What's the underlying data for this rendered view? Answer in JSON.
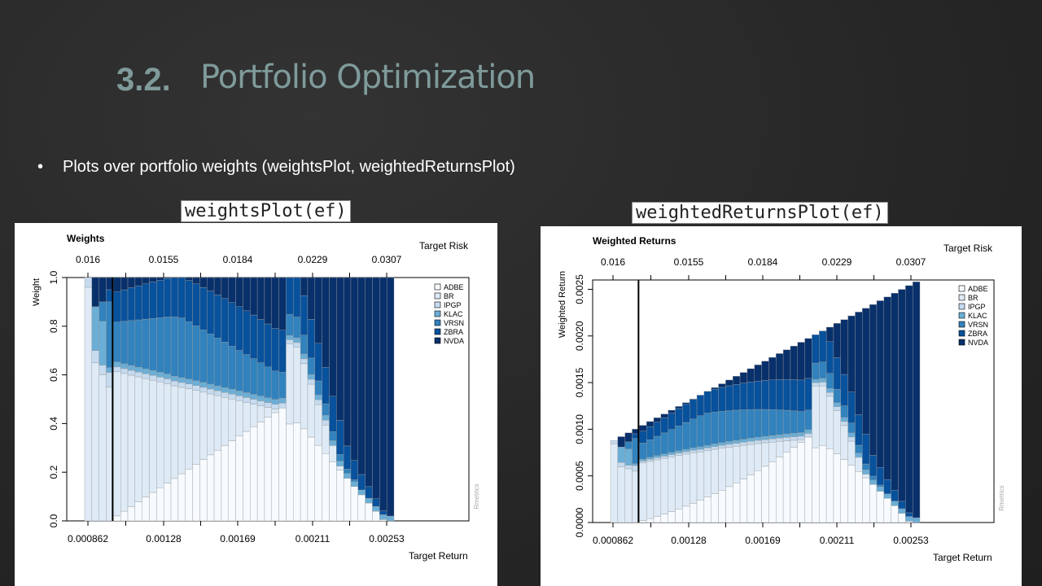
{
  "header": {
    "section_number": "3.2.",
    "title": "Portfolio Optimization"
  },
  "bullet": {
    "marker": "•",
    "text": "Plots over portfolio weights (weightsPlot, weightedReturnsPlot)"
  },
  "labels": {
    "left_code": "weightsPlot(ef)",
    "right_code": "weightedReturnsPlot(ef)"
  },
  "chart_data": [
    {
      "type": "bar",
      "stacked": true,
      "title": "Weights",
      "ylabel": "Weight",
      "xlabel": "Target Return",
      "top_axis_label": "Target Risk",
      "watermark": "Rmetrics",
      "ylim": [
        0,
        1
      ],
      "yticks": [
        "0.0",
        "0.2",
        "0.4",
        "0.6",
        "0.8",
        "1.0"
      ],
      "x_tick_labels": [
        "0.000862",
        "0.00128",
        "0.00169",
        "0.00211",
        "0.00253"
      ],
      "top_tick_labels": [
        "0.016",
        "0.0155",
        "0.0184",
        "0.0229",
        "0.0307"
      ],
      "legend_position": "top-right",
      "legend": [
        "ADBE",
        "BR",
        "IPGP",
        "KLAC",
        "VRSN",
        "ZBRA",
        "NVDA"
      ],
      "colors": [
        "#f7fbff",
        "#deebf7",
        "#c6dbef",
        "#6baed6",
        "#3182bd",
        "#08519c",
        "#08306b"
      ],
      "min_variance_bar_index": 4,
      "bar_count": 43
    },
    {
      "type": "bar",
      "stacked": true,
      "title": "Weighted Returns",
      "ylabel": "Weighted Return",
      "xlabel": "Target Return",
      "top_axis_label": "Target Risk",
      "watermark": "Rmetrics",
      "ylim": [
        0,
        0.0026
      ],
      "yticks": [
        "0.0000",
        "0.0005",
        "0.0010",
        "0.0015",
        "0.0020",
        "0.0025"
      ],
      "x_tick_labels": [
        "0.000862",
        "0.00128",
        "0.00169",
        "0.00211",
        "0.00253"
      ],
      "top_tick_labels": [
        "0.016",
        "0.0155",
        "0.0184",
        "0.0229",
        "0.0307"
      ],
      "legend_position": "top-right",
      "legend": [
        "ADBE",
        "BR",
        "IPGP",
        "KLAC",
        "VRSN",
        "ZBRA",
        "NVDA"
      ],
      "colors": [
        "#f7fbff",
        "#deebf7",
        "#c6dbef",
        "#6baed6",
        "#3182bd",
        "#08519c",
        "#08306b"
      ],
      "min_variance_bar_index": 4,
      "bar_count": 43
    }
  ]
}
